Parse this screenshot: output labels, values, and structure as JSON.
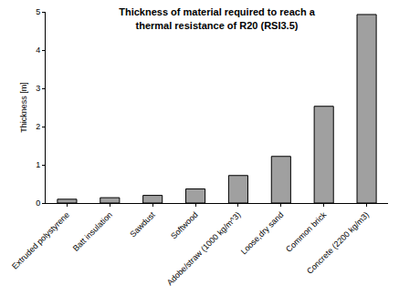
{
  "chart_data": {
    "type": "bar",
    "title": "Thickness of material required to reach a\nthermal resistance of R20 (RSI3.5)",
    "y_label": "Thickness [m]",
    "categories": [
      "Extruded polystyrene",
      "Batt insulation",
      "Sawdust",
      "Softwood",
      "Adobe/straw (1000 kg/m^3)",
      "Loose,dry sand",
      "Common brick",
      "Concrete (2200 kg/m3)"
    ],
    "values": [
      0.1,
      0.14,
      0.2,
      0.37,
      0.72,
      1.22,
      2.53,
      4.93
    ],
    "color": "#a0a0a0",
    "ylim": [
      0,
      5
    ],
    "yticks": [
      0,
      1,
      2,
      3,
      4,
      5
    ],
    "grid": false
  }
}
